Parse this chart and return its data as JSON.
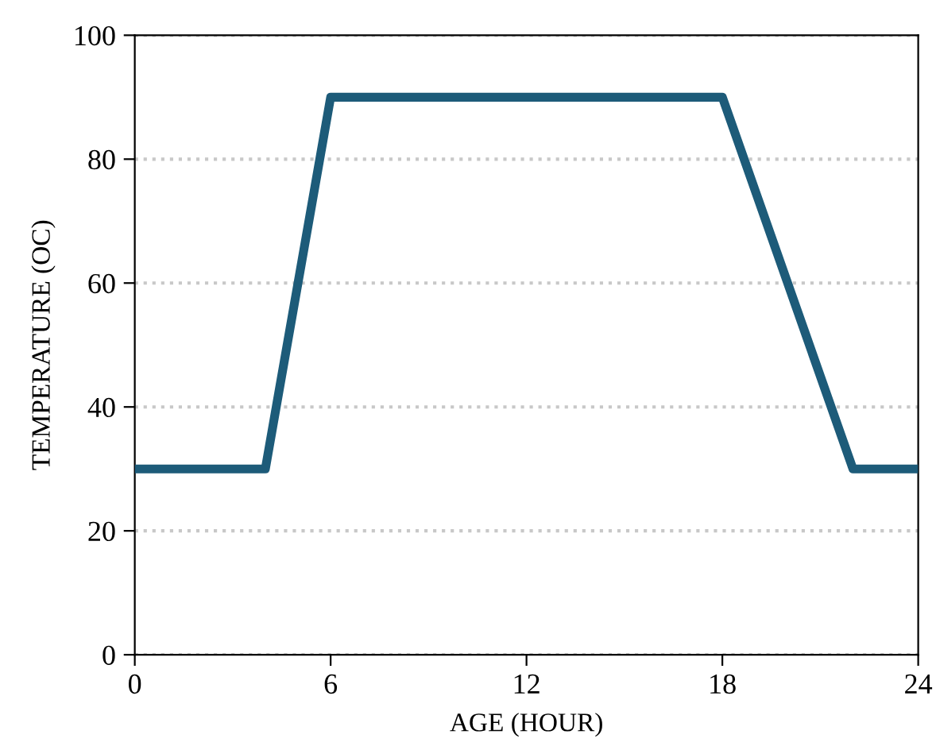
{
  "chart_data": {
    "type": "line",
    "xlabel": "AGE (HOUR)",
    "ylabel": "TEMPERATURE (OC)",
    "x": [
      0,
      4,
      6,
      18,
      22,
      24
    ],
    "series": [
      {
        "color": "#1d5b79",
        "values": [
          30,
          30,
          90,
          90,
          30,
          30
        ]
      }
    ],
    "xlim": [
      0,
      24
    ],
    "xticks": [
      0,
      6,
      12,
      18,
      24
    ],
    "ylim": [
      0,
      100
    ],
    "yticks": [
      0,
      20,
      40,
      60,
      80,
      100
    ],
    "grid": "y",
    "marker": "none",
    "line_style": "solid"
  }
}
